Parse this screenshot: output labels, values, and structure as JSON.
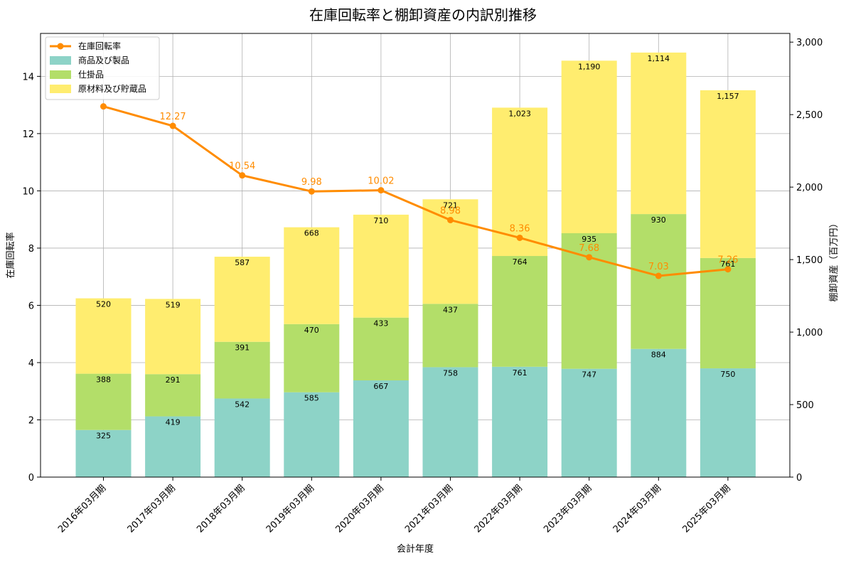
{
  "chart_data": {
    "type": "bar",
    "title": "在庫回転率と棚卸資産の内訳別推移",
    "xlabel": "会計年度",
    "ylabel_left": "在庫回転率",
    "ylabel_right": "棚卸資産（百万円）",
    "categories": [
      "2016年03月期",
      "2017年03月期",
      "2018年03月期",
      "2019年03月期",
      "2020年03月期",
      "2021年03月期",
      "2022年03月期",
      "2023年03月期",
      "2024年03月期",
      "2025年03月期"
    ],
    "ylim_left": [
      0,
      15.5
    ],
    "ylim_right": [
      0,
      3060
    ],
    "left_ticks": [
      "0",
      "2",
      "4",
      "6",
      "8",
      "10",
      "12",
      "14"
    ],
    "right_ticks": [
      "0",
      "500",
      "1,000",
      "1,500",
      "2,000",
      "2,500",
      "3,000"
    ],
    "grid": true,
    "legend_position": "top-left",
    "series": [
      {
        "name": "商品及び製品",
        "kind": "bar",
        "axis": "right",
        "color": "#8dd3c7",
        "values": [
          325,
          419,
          542,
          585,
          667,
          758,
          761,
          747,
          884,
          750
        ],
        "labels": [
          "325",
          "419",
          "542",
          "585",
          "667",
          "758",
          "761",
          "747",
          "884",
          "750"
        ]
      },
      {
        "name": "仕掛品",
        "kind": "bar",
        "axis": "right",
        "color": "#b3de69",
        "values": [
          388,
          291,
          391,
          470,
          433,
          437,
          764,
          935,
          930,
          761
        ],
        "labels": [
          "388",
          "291",
          "391",
          "470",
          "433",
          "437",
          "764",
          "935",
          "930",
          "761"
        ]
      },
      {
        "name": "原材料及び貯蔵品",
        "kind": "bar",
        "axis": "right",
        "color": "#ffed6f",
        "values": [
          520,
          519,
          587,
          668,
          710,
          721,
          1023,
          1190,
          1114,
          1157
        ],
        "labels": [
          "520",
          "519",
          "587",
          "668",
          "710",
          "721",
          "1,023",
          "1,190",
          "1,114",
          "1,157"
        ]
      },
      {
        "name": "在庫回転率",
        "kind": "line",
        "axis": "left",
        "color": "#ff8c00",
        "values": [
          12.95,
          12.27,
          10.54,
          9.98,
          10.02,
          8.98,
          8.36,
          7.68,
          7.03,
          7.26
        ],
        "labels": [
          "",
          "12.27",
          "10.54",
          "9.98",
          "10.02",
          "8.98",
          "8.36",
          "7.68",
          "7.03",
          "7.26"
        ]
      }
    ]
  }
}
